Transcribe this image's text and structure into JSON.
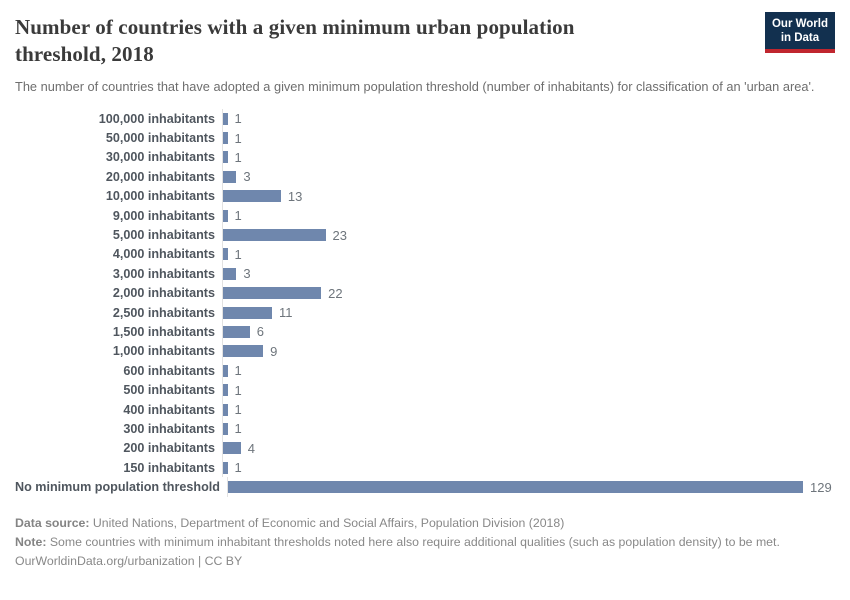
{
  "header": {
    "title": "Number of countries with a given minimum urban population threshold, 2018",
    "subtitle": "The number of countries that have adopted a given minimum population threshold (number of inhabitants) for classification of an 'urban area'.",
    "logo": {
      "line1": "Our World",
      "line2": "in Data"
    }
  },
  "chart_data": {
    "type": "bar",
    "orientation": "horizontal",
    "title": "Number of countries with a given minimum urban population threshold, 2018",
    "xlabel": "",
    "ylabel": "",
    "xlim": [
      0,
      129
    ],
    "grid": false,
    "legend": false,
    "categories": [
      "100,000 inhabitants",
      "50,000 inhabitants",
      "30,000 inhabitants",
      "20,000 inhabitants",
      "10,000 inhabitants",
      "9,000 inhabitants",
      "5,000 inhabitants",
      "4,000 inhabitants",
      "3,000 inhabitants",
      "2,000 inhabitants",
      "2,500 inhabitants",
      "1,500 inhabitants",
      "1,000 inhabitants",
      "600 inhabitants",
      "500 inhabitants",
      "400 inhabitants",
      "300 inhabitants",
      "200 inhabitants",
      "150 inhabitants",
      "No minimum population threshold"
    ],
    "values": [
      1,
      1,
      1,
      3,
      13,
      1,
      23,
      1,
      3,
      22,
      11,
      6,
      9,
      1,
      1,
      1,
      1,
      4,
      1,
      129
    ]
  },
  "colors": {
    "bar": "#6f87ad",
    "axis_line": "#e2e2e2",
    "logo_bg": "#12304f",
    "logo_accent": "#c0262e",
    "title_text": "#3a3a3a",
    "subtitle_text": "#6e6e6e",
    "label_text": "#4f565e",
    "value_text": "#6e757c",
    "footer_text": "#888888"
  },
  "footer": {
    "data_source_label": "Data source:",
    "data_source_text": " United Nations, Department of Economic and Social Affairs, Population Division (2018)",
    "note_label": "Note:",
    "note_text": " Some countries with minimum inhabitant thresholds noted here also require additional qualities (such as population density) to be met.",
    "attribution": "OurWorldinData.org/urbanization | CC BY"
  }
}
